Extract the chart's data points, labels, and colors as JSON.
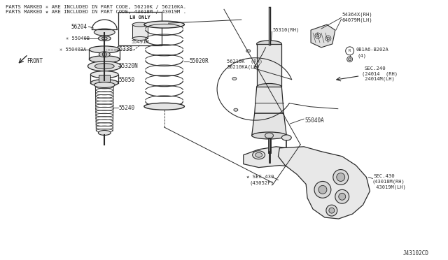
{
  "background_color": "#ffffff",
  "line_color": "#2a2a2a",
  "text_color": "#2a2a2a",
  "header_lines": [
    "PARTS MARKED ✳ ARE INCLUDED IN PART CODE, 56210K / 56210KA.",
    "PARTS MARKED ★ ARE INCLUDED IN PART CODE, 43018M / 43019M ."
  ],
  "footer_code": "J43102CD"
}
